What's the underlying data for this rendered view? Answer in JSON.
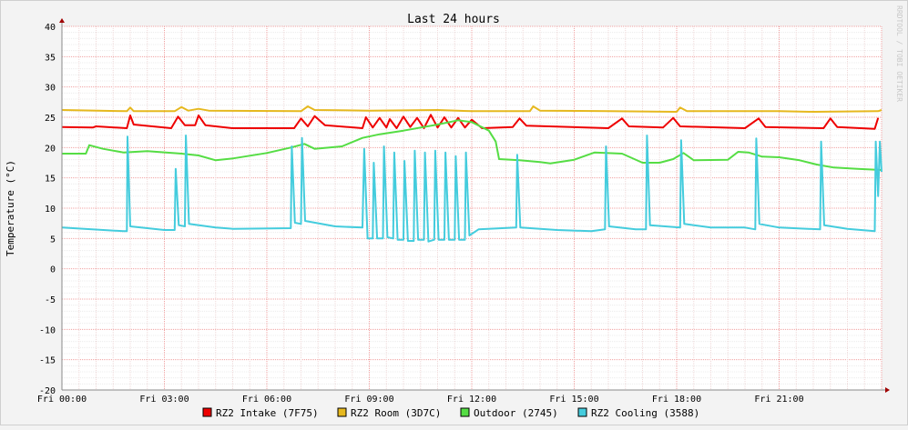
{
  "chart_data": {
    "type": "line",
    "title": "Last 24 hours",
    "ylabel": "Temperature (°C)",
    "watermark": "RRDTOOL / TOBI OETIKER",
    "ylim": [
      -20,
      40
    ],
    "yticks": [
      -20,
      -15,
      -10,
      -5,
      0,
      5,
      10,
      15,
      20,
      25,
      30,
      35,
      40
    ],
    "x_range_hours": [
      0,
      24
    ],
    "xticks": [
      {
        "hour": 0,
        "label": "Fri 00:00"
      },
      {
        "hour": 3,
        "label": "Fri 03:00"
      },
      {
        "hour": 6,
        "label": "Fri 06:00"
      },
      {
        "hour": 9,
        "label": "Fri 09:00"
      },
      {
        "hour": 12,
        "label": "Fri 12:00"
      },
      {
        "hour": 15,
        "label": "Fri 15:00"
      },
      {
        "hour": 18,
        "label": "Fri 18:00"
      },
      {
        "hour": 21,
        "label": "Fri 21:00"
      }
    ],
    "grid": true,
    "series": [
      {
        "name": "RZ2 Intake (7F75)",
        "color": "#ee0000",
        "points": [
          [
            0,
            23.4
          ],
          [
            0.9,
            23.3
          ],
          [
            1,
            23.5
          ],
          [
            1.9,
            23.2
          ],
          [
            2,
            25.3
          ],
          [
            2.1,
            23.8
          ],
          [
            3.2,
            23.2
          ],
          [
            3.4,
            25.1
          ],
          [
            3.6,
            23.7
          ],
          [
            3.9,
            23.7
          ],
          [
            4,
            25.3
          ],
          [
            4.2,
            23.7
          ],
          [
            5,
            23.2
          ],
          [
            6.8,
            23.2
          ],
          [
            7,
            24.8
          ],
          [
            7.2,
            23.5
          ],
          [
            7.4,
            25.2
          ],
          [
            7.7,
            23.7
          ],
          [
            8.8,
            23.2
          ],
          [
            8.9,
            25.0
          ],
          [
            9.1,
            23.3
          ],
          [
            9.3,
            24.9
          ],
          [
            9.5,
            23.3
          ],
          [
            9.6,
            24.7
          ],
          [
            9.8,
            23.2
          ],
          [
            10,
            25.1
          ],
          [
            10.2,
            23.4
          ],
          [
            10.4,
            24.9
          ],
          [
            10.6,
            23.2
          ],
          [
            10.8,
            25.4
          ],
          [
            11,
            23.3
          ],
          [
            11.2,
            25.0
          ],
          [
            11.4,
            23.3
          ],
          [
            11.6,
            24.9
          ],
          [
            11.8,
            23.3
          ],
          [
            12,
            24.6
          ],
          [
            12.3,
            23.2
          ],
          [
            13.2,
            23.4
          ],
          [
            13.4,
            24.8
          ],
          [
            13.6,
            23.6
          ],
          [
            16,
            23.2
          ],
          [
            16.4,
            24.8
          ],
          [
            16.6,
            23.5
          ],
          [
            17.6,
            23.3
          ],
          [
            17.9,
            24.9
          ],
          [
            18.1,
            23.5
          ],
          [
            20,
            23.2
          ],
          [
            20.4,
            24.8
          ],
          [
            20.6,
            23.4
          ],
          [
            22.3,
            23.2
          ],
          [
            22.5,
            24.8
          ],
          [
            22.7,
            23.4
          ],
          [
            23.8,
            23.1
          ],
          [
            23.9,
            24.9
          ]
        ]
      },
      {
        "name": "RZ2 Room (3D7C)",
        "color": "#e6b81e",
        "points": [
          [
            0,
            26.2
          ],
          [
            1.9,
            26.0
          ],
          [
            2,
            26.6
          ],
          [
            2.1,
            26.0
          ],
          [
            3.3,
            26.0
          ],
          [
            3.5,
            26.7
          ],
          [
            3.7,
            26.1
          ],
          [
            4,
            26.4
          ],
          [
            4.3,
            26.1
          ],
          [
            7,
            26.0
          ],
          [
            7.2,
            26.8
          ],
          [
            7.4,
            26.2
          ],
          [
            9,
            26.1
          ],
          [
            11,
            26.2
          ],
          [
            12,
            26.0
          ],
          [
            13.7,
            26.0
          ],
          [
            13.8,
            26.8
          ],
          [
            14,
            26.1
          ],
          [
            16,
            26.0
          ],
          [
            18,
            25.9
          ],
          [
            18.1,
            26.6
          ],
          [
            18.3,
            26.0
          ],
          [
            21,
            26.0
          ],
          [
            22,
            25.9
          ],
          [
            23.9,
            26.0
          ],
          [
            24,
            26.2
          ]
        ]
      },
      {
        "name": "Outdoor (2745)",
        "color": "#55dd44",
        "points": [
          [
            0,
            19.0
          ],
          [
            0.7,
            19.0
          ],
          [
            0.8,
            20.4
          ],
          [
            1.2,
            19.8
          ],
          [
            1.8,
            19.2
          ],
          [
            2.5,
            19.4
          ],
          [
            3.5,
            19.0
          ],
          [
            4.0,
            18.7
          ],
          [
            4.5,
            17.9
          ],
          [
            5,
            18.2
          ],
          [
            6,
            19.1
          ],
          [
            6.7,
            20.0
          ],
          [
            7.1,
            20.6
          ],
          [
            7.4,
            19.8
          ],
          [
            8.2,
            20.2
          ],
          [
            8.8,
            21.6
          ],
          [
            9.3,
            22.2
          ],
          [
            10,
            22.8
          ],
          [
            11,
            23.8
          ],
          [
            11.6,
            24.5
          ],
          [
            12,
            24.2
          ],
          [
            12.5,
            22.8
          ],
          [
            12.7,
            21.0
          ],
          [
            12.8,
            18.1
          ],
          [
            13.4,
            17.9
          ],
          [
            14,
            17.6
          ],
          [
            14.3,
            17.4
          ],
          [
            15,
            18.0
          ],
          [
            15.6,
            19.2
          ],
          [
            16.4,
            19.0
          ],
          [
            17.0,
            17.5
          ],
          [
            17.5,
            17.5
          ],
          [
            17.9,
            18.1
          ],
          [
            18.2,
            19.1
          ],
          [
            18.5,
            17.9
          ],
          [
            19.5,
            18.0
          ],
          [
            19.8,
            19.3
          ],
          [
            20.1,
            19.2
          ],
          [
            20.5,
            18.5
          ],
          [
            21,
            18.4
          ],
          [
            21.6,
            17.9
          ],
          [
            22.1,
            17.2
          ],
          [
            22.6,
            16.7
          ],
          [
            23.3,
            16.5
          ],
          [
            24,
            16.3
          ]
        ]
      },
      {
        "name": "RZ2 Cooling (3588)",
        "color": "#44ccdd",
        "points": [
          [
            0,
            6.8
          ],
          [
            1.8,
            6.2
          ],
          [
            1.9,
            6.2
          ],
          [
            1.92,
            21.8
          ],
          [
            2.0,
            7.0
          ],
          [
            3.0,
            6.4
          ],
          [
            3.3,
            6.4
          ],
          [
            3.33,
            16.5
          ],
          [
            3.42,
            7.2
          ],
          [
            3.6,
            7.0
          ],
          [
            3.63,
            22.0
          ],
          [
            3.72,
            7.4
          ],
          [
            4.5,
            6.8
          ],
          [
            5,
            6.6
          ],
          [
            6.7,
            6.7
          ],
          [
            6.73,
            20.2
          ],
          [
            6.82,
            7.6
          ],
          [
            7.0,
            7.4
          ],
          [
            7.03,
            21.6
          ],
          [
            7.12,
            7.9
          ],
          [
            8,
            7.0
          ],
          [
            8.8,
            6.8
          ],
          [
            8.85,
            19.8
          ],
          [
            8.95,
            5.0
          ],
          [
            9.1,
            5.0
          ],
          [
            9.13,
            17.5
          ],
          [
            9.23,
            5.0
          ],
          [
            9.4,
            5.0
          ],
          [
            9.43,
            20.2
          ],
          [
            9.53,
            5.2
          ],
          [
            9.7,
            5.0
          ],
          [
            9.73,
            19.2
          ],
          [
            9.83,
            4.8
          ],
          [
            10.0,
            4.8
          ],
          [
            10.03,
            17.8
          ],
          [
            10.13,
            4.6
          ],
          [
            10.3,
            4.6
          ],
          [
            10.33,
            19.5
          ],
          [
            10.43,
            4.8
          ],
          [
            10.6,
            4.8
          ],
          [
            10.63,
            19.2
          ],
          [
            10.73,
            4.5
          ],
          [
            10.9,
            4.8
          ],
          [
            10.93,
            19.5
          ],
          [
            11.03,
            4.8
          ],
          [
            11.2,
            4.8
          ],
          [
            11.23,
            19.2
          ],
          [
            11.33,
            4.8
          ],
          [
            11.5,
            4.8
          ],
          [
            11.53,
            18.6
          ],
          [
            11.63,
            4.8
          ],
          [
            11.8,
            4.8
          ],
          [
            11.83,
            19.2
          ],
          [
            11.93,
            5.5
          ],
          [
            12.2,
            6.5
          ],
          [
            13.3,
            6.8
          ],
          [
            13.33,
            18.8
          ],
          [
            13.42,
            6.8
          ],
          [
            14.5,
            6.4
          ],
          [
            15.5,
            6.2
          ],
          [
            15.9,
            6.5
          ],
          [
            15.93,
            20.2
          ],
          [
            16.02,
            7.0
          ],
          [
            16.8,
            6.5
          ],
          [
            17.1,
            6.5
          ],
          [
            17.13,
            22.0
          ],
          [
            17.22,
            7.2
          ],
          [
            18.1,
            6.8
          ],
          [
            18.13,
            21.2
          ],
          [
            18.22,
            7.4
          ],
          [
            19,
            6.8
          ],
          [
            20,
            6.8
          ],
          [
            20.3,
            6.5
          ],
          [
            20.33,
            21.5
          ],
          [
            20.42,
            7.4
          ],
          [
            21,
            6.8
          ],
          [
            22.2,
            6.5
          ],
          [
            22.23,
            21.0
          ],
          [
            22.32,
            7.2
          ],
          [
            23,
            6.6
          ],
          [
            23.8,
            6.2
          ],
          [
            23.83,
            21.0
          ],
          [
            23.9,
            12.0
          ],
          [
            23.95,
            21.0
          ],
          [
            24,
            16.0
          ]
        ]
      }
    ]
  }
}
